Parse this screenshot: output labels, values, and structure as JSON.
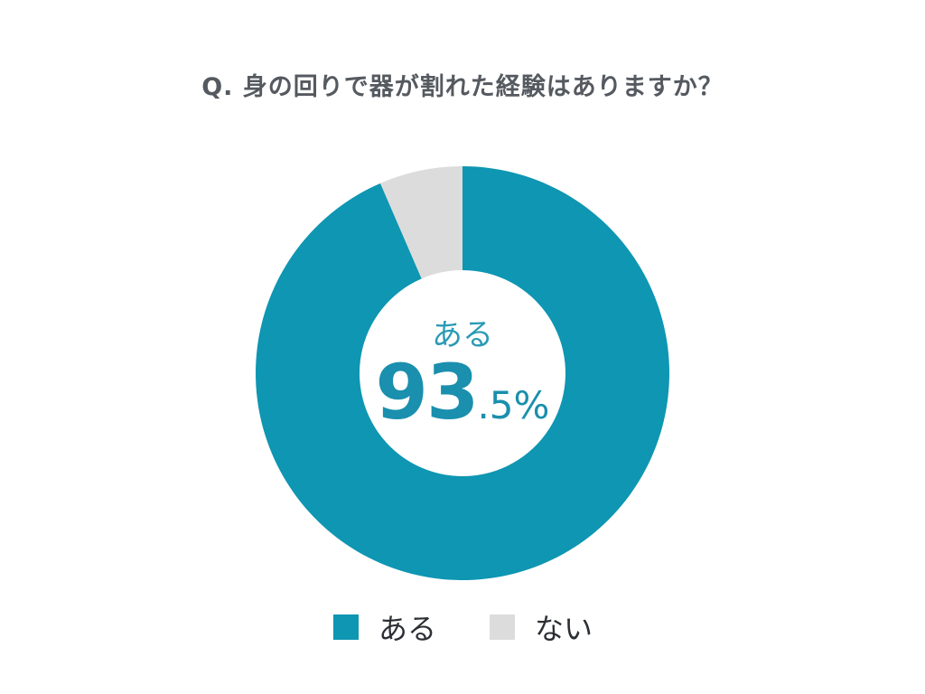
{
  "chart_data": {
    "type": "pie",
    "title": "Q.  身の回りで器が割れた経験はありますか？",
    "categories": [
      "ある",
      "ない"
    ],
    "values": [
      93.5,
      6.5
    ],
    "colors": [
      "#0e96b2",
      "#dcdcdc"
    ],
    "center_label": "ある",
    "center_value_big": "93",
    "center_value_small": ".5%",
    "legend": [
      {
        "label": "ある",
        "color": "#0e96b2"
      },
      {
        "label": "ない",
        "color": "#dcdcdc"
      }
    ],
    "legend_position": "bottom"
  }
}
